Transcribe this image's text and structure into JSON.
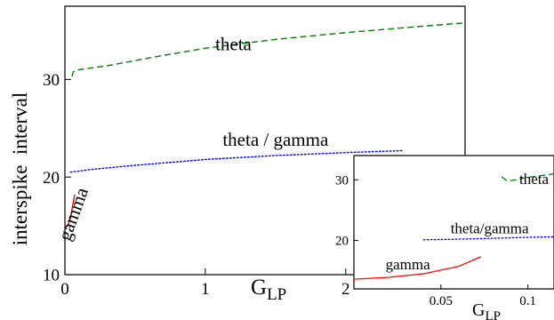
{
  "chart_data": [
    {
      "type": "line",
      "xlabel": "G",
      "xlabel_sub": "LP",
      "ylabel": "interspike  interval",
      "xlim": [
        0,
        2.85
      ],
      "ylim": [
        10,
        37.5
      ],
      "x_ticks": [
        0,
        1,
        2
      ],
      "y_ticks": [
        10,
        20,
        30
      ],
      "grid": false,
      "series": [
        {
          "name": "theta",
          "color": "#008000",
          "dash": "dashed",
          "label_at": [
            1.2,
            33.0
          ],
          "points": [
            [
              0.05,
              30.3
            ],
            [
              0.06,
              30.8
            ],
            [
              0.1,
              31.0
            ],
            [
              0.3,
              31.4
            ],
            [
              0.6,
              32.2
            ],
            [
              1.0,
              33.2
            ],
            [
              1.5,
              34.1
            ],
            [
              2.0,
              34.8
            ],
            [
              2.5,
              35.4
            ],
            [
              2.85,
              35.8
            ]
          ]
        },
        {
          "name": "theta / gamma",
          "color": "#0000ff",
          "dash": "dotted",
          "label_at": [
            1.5,
            23.2
          ],
          "points": [
            [
              0.04,
              20.5
            ],
            [
              0.2,
              20.8
            ],
            [
              0.5,
              21.2
            ],
            [
              1.0,
              21.8
            ],
            [
              1.5,
              22.2
            ],
            [
              2.0,
              22.5
            ],
            [
              2.4,
              22.7
            ]
          ]
        },
        {
          "name": "gamma",
          "color": "#ff0000",
          "dash": "solid",
          "label_at": [
            0.1,
            16.0
          ],
          "label_rotate": -70,
          "points": [
            [
              0.0,
              15.0
            ],
            [
              0.01,
              14.9
            ],
            [
              0.02,
              15.0
            ],
            [
              0.04,
              15.8
            ],
            [
              0.06,
              17.5
            ],
            [
              0.07,
              18.2
            ]
          ]
        }
      ]
    },
    {
      "type": "line",
      "xlabel": "G",
      "xlabel_sub": "LP",
      "xlim": [
        0,
        0.115
      ],
      "ylim": [
        12,
        34
      ],
      "x_ticks": [
        0.05,
        0.1
      ],
      "x_tick_labels": [
        "0.05",
        "0.1"
      ],
      "y_ticks": [
        20,
        30
      ],
      "grid": false,
      "series": [
        {
          "name": "theta",
          "color": "#008000",
          "dash": "dashed",
          "label_at": [
            0.1035,
            29.3
          ],
          "points": [
            [
              0.085,
              30.5
            ],
            [
              0.088,
              29.8
            ],
            [
              0.091,
              29.9
            ],
            [
              0.1,
              30.4
            ],
            [
              0.108,
              30.7
            ],
            [
              0.115,
              31.0
            ]
          ]
        },
        {
          "name": "theta/gamma",
          "color": "#0000ff",
          "dash": "dotted",
          "label_at": [
            0.078,
            21.2
          ],
          "points": [
            [
              0.04,
              20.1
            ],
            [
              0.06,
              20.2
            ],
            [
              0.08,
              20.35
            ],
            [
              0.1,
              20.5
            ],
            [
              0.115,
              20.6
            ]
          ]
        },
        {
          "name": "gamma",
          "color": "#ff0000",
          "dash": "solid",
          "label_at": [
            0.031,
            15.2
          ],
          "points": [
            [
              0.0,
              13.6
            ],
            [
              0.02,
              13.9
            ],
            [
              0.04,
              14.5
            ],
            [
              0.06,
              15.7
            ],
            [
              0.073,
              17.3
            ]
          ]
        }
      ]
    }
  ]
}
